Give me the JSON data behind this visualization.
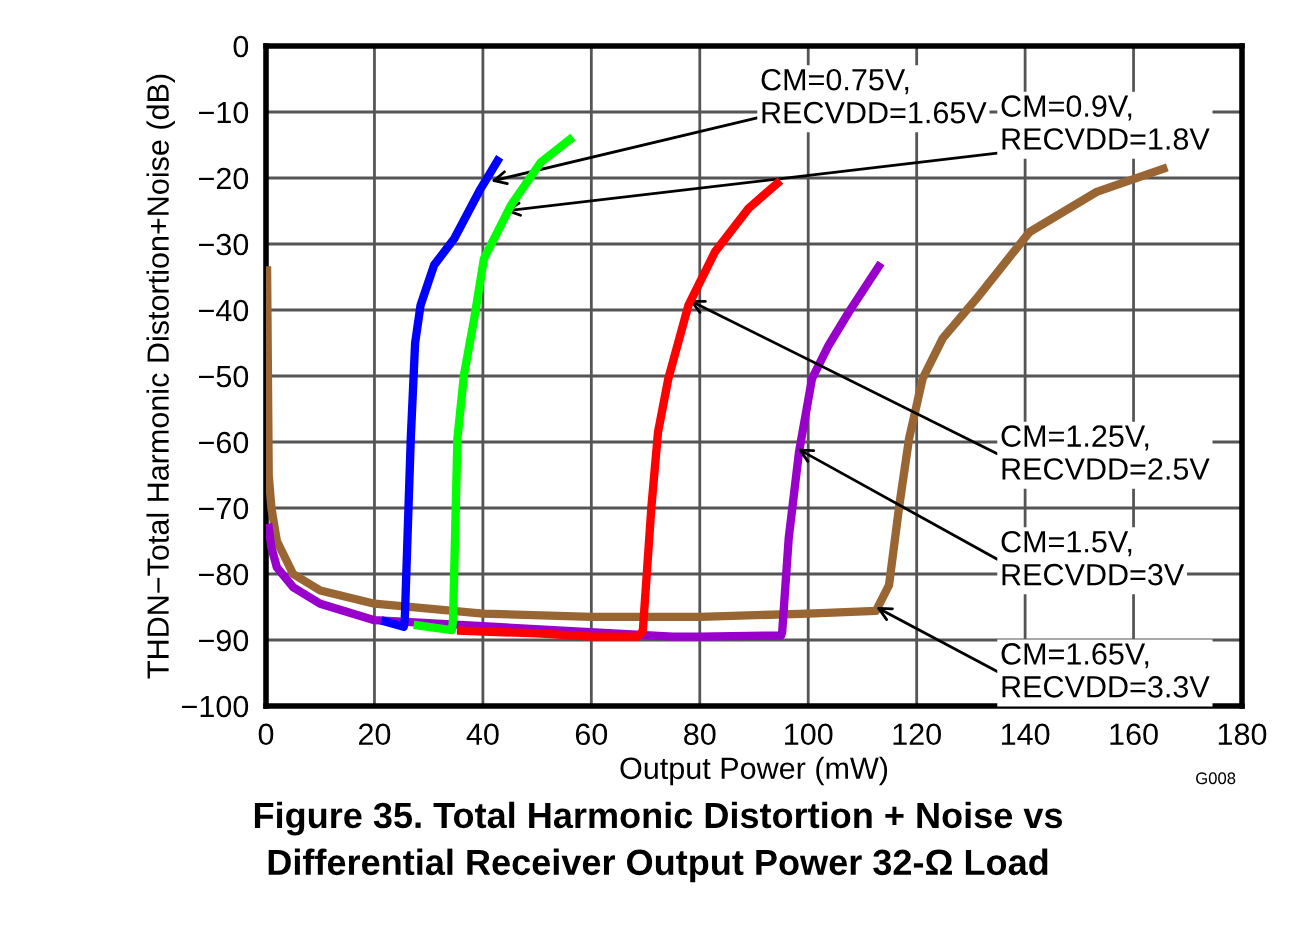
{
  "chart_data": {
    "type": "line",
    "title": "Figure 35. Total Harmonic Distortion + Noise vs\nDifferential Receiver Output Power 32-Ω Load",
    "xlabel": "Output Power (mW)",
    "ylabel": "THDN−Total Harmonic Distortion+Noise (dB)",
    "xlim": [
      0,
      180
    ],
    "xticks": [
      0,
      20,
      40,
      60,
      80,
      100,
      120,
      140,
      160,
      180
    ],
    "ylim": [
      -100,
      0
    ],
    "yticks": [
      -100,
      -90,
      -80,
      -70,
      -60,
      -50,
      -40,
      -30,
      -20,
      -10,
      0
    ],
    "grid": true,
    "line_style": "solid",
    "marker": "none",
    "series": [
      {
        "color": "#0000ff",
        "x": [
          22,
          25.4,
          25.6,
          26.7,
          27.5,
          28.5,
          31,
          34.7,
          39.6,
          42.7
        ],
        "values": [
          -87.2,
          -88,
          -86.8,
          -59.5,
          -45,
          -39.3,
          -33.2,
          -29.2,
          -21.6,
          -17.4
        ]
      },
      {
        "color": "#00ff00",
        "x": [
          28,
          34.3,
          34.5,
          35.3,
          36.5,
          38.4,
          40.2,
          45.2,
          50.7,
          56
        ],
        "values": [
          -87.8,
          -88.5,
          -86.8,
          -59.5,
          -49.9,
          -41.3,
          -32.2,
          -24.1,
          -17.6,
          -14.2
        ]
      },
      {
        "color": "#ff0000",
        "x": [
          36,
          50,
          60,
          68.6,
          69.5,
          71.1,
          72.3,
          74.2,
          77.9,
          82.8,
          89,
          94.3
        ],
        "values": [
          -88.6,
          -89,
          -89.5,
          -89.5,
          -88.6,
          -69.6,
          -58.5,
          -50.4,
          -39.3,
          -31.2,
          -24.6,
          -20.8
        ]
      },
      {
        "color": "#9900cc",
        "x": [
          0.5,
          1,
          2,
          5,
          10,
          20,
          75,
          80,
          95,
          95.2,
          96.4,
          98.3,
          100.7,
          103.8,
          107.5,
          113
        ],
        "values": [
          -73,
          -76,
          -79,
          -82,
          -84.5,
          -87,
          -89.5,
          -89.5,
          -89.3,
          -88.8,
          -74.6,
          -61.5,
          -50.4,
          -45.3,
          -40.3,
          -33.4
        ]
      },
      {
        "color": "#996633",
        "x": [
          0.2,
          0.5,
          1,
          2,
          5,
          10,
          20,
          40,
          60,
          80,
          100,
          112.5,
          114.9,
          116.8,
          118.6,
          121.1,
          124.8,
          131,
          140.8,
          153.2,
          165.5
        ],
        "values": [
          -34,
          -65,
          -70,
          -75,
          -80,
          -82.5,
          -84.5,
          -86,
          -86.5,
          -86.5,
          -86,
          -85.6,
          -81.7,
          -69.6,
          -59.5,
          -50.4,
          -44.3,
          -38.3,
          -28.2,
          -22.1,
          -18.6
        ]
      }
    ],
    "annotations": [
      {
        "text": "CM=0.75V,\nRECVDD=1.65V",
        "x": 41.5,
        "y": -20.5
      },
      {
        "text": "CM=0.9V,\nRECVDD=1.8V",
        "x": 44,
        "y": -25
      },
      {
        "text": "CM=1.25V,\nRECVDD=2.5V",
        "x": 78,
        "y": -38.5
      },
      {
        "text": "CM=1.5V,\nRECVDD=3V",
        "x": 98,
        "y": -61
      },
      {
        "text": "CM=1.65V,\nRECVDD=3.3V",
        "x": 112.5,
        "y": -85
      },
      "G008"
    ]
  }
}
